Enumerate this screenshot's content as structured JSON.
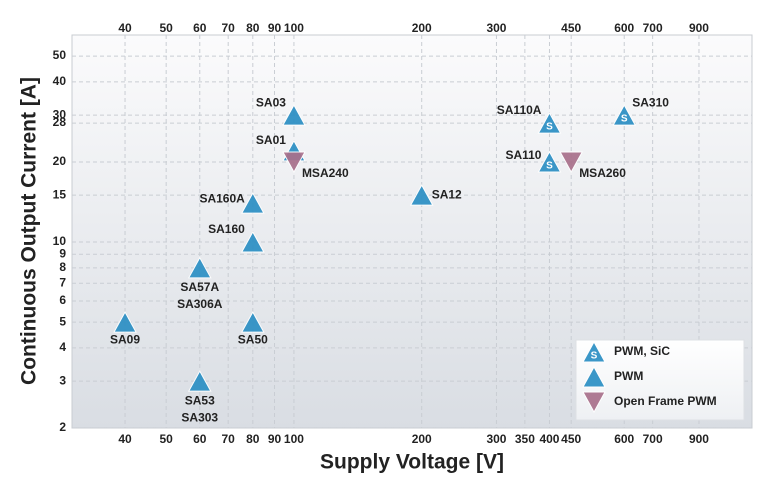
{
  "chart_data": {
    "type": "scatter",
    "x_label": "Supply Voltage [V]",
    "y_label": "Continuous Output Current [A]",
    "xscale": "log",
    "yscale": "log",
    "grid": true,
    "legend": "lower right",
    "xlim": [
      30,
      1200
    ],
    "ylim": [
      2,
      60
    ],
    "xticks": [
      40,
      50,
      60,
      70,
      80,
      90,
      100,
      200,
      300,
      350,
      400,
      450,
      600,
      700,
      900
    ],
    "xticks_top": [
      40,
      50,
      60,
      70,
      80,
      90,
      100,
      200,
      300,
      450,
      600,
      700,
      900
    ],
    "yticks": [
      2,
      3,
      4,
      5,
      6,
      7,
      8,
      9,
      10,
      15,
      20,
      28,
      30,
      40,
      50
    ],
    "series": [
      {
        "name": "PWM, SiC",
        "color": "#2b8fc4",
        "marker": "triangle-up",
        "symbol_text": "S",
        "points": [
          {
            "x": 400,
            "y": 28,
            "label": [
              "SA110A"
            ]
          },
          {
            "x": 400,
            "y": 20,
            "label": [
              "SA110"
            ]
          },
          {
            "x": 600,
            "y": 30,
            "label": [
              "SA310"
            ]
          }
        ]
      },
      {
        "name": "PWM",
        "color": "#2b8fc4",
        "marker": "triangle-up",
        "points": [
          {
            "x": 100,
            "y": 30,
            "label": [
              "SA03"
            ]
          },
          {
            "x": 100,
            "y": 22,
            "label": [
              "SA01"
            ]
          },
          {
            "x": 80,
            "y": 14,
            "label": [
              "SA160A"
            ]
          },
          {
            "x": 80,
            "y": 10,
            "label": [
              "SA160"
            ]
          },
          {
            "x": 60,
            "y": 8,
            "label": [
              "SA57A",
              "SA306A"
            ]
          },
          {
            "x": 40,
            "y": 5,
            "label": [
              "SA09"
            ]
          },
          {
            "x": 80,
            "y": 5,
            "label": [
              "SA50"
            ]
          },
          {
            "x": 60,
            "y": 3,
            "label": [
              "SA53",
              "SA303"
            ]
          },
          {
            "x": 200,
            "y": 15,
            "label": [
              "SA12"
            ]
          }
        ]
      },
      {
        "name": "Open Frame PWM",
        "color": "#a9708b",
        "marker": "triangle-down",
        "points": [
          {
            "x": 100,
            "y": 20,
            "label": [
              "MSA240"
            ]
          },
          {
            "x": 450,
            "y": 20,
            "label": [
              "MSA260"
            ]
          }
        ]
      }
    ]
  }
}
